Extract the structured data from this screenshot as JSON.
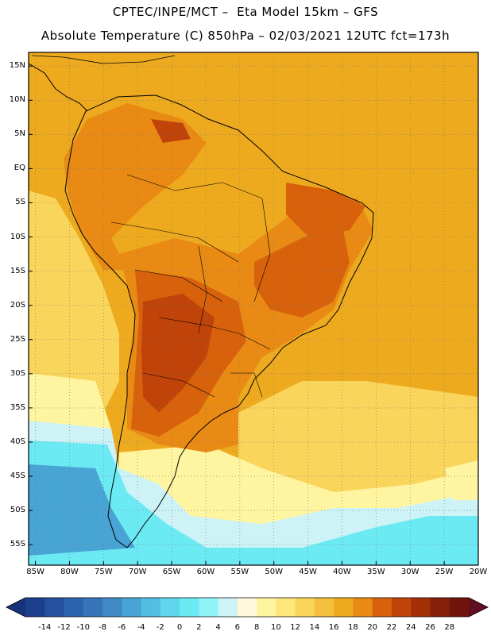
{
  "header": {
    "line1": "CPTEC/INPE/MCT –  Eta Model 15km – GFS",
    "line2": "Absolute Temperature (C) 850hPa – 02/03/2021 12UTC fct=173h"
  },
  "map": {
    "lat_range": [
      -58,
      17
    ],
    "lon_range": [
      -86,
      -20
    ],
    "lat_labels": [
      "15N",
      "10N",
      "5N",
      "EQ",
      "5S",
      "10S",
      "15S",
      "20S",
      "25S",
      "30S",
      "35S",
      "40S",
      "45S",
      "50S",
      "55S"
    ],
    "lon_labels": [
      "85W",
      "80W",
      "75W",
      "70W",
      "65W",
      "60W",
      "55W",
      "50W",
      "45W",
      "40W",
      "35W",
      "30W",
      "25W",
      "20W"
    ]
  },
  "colorbar": {
    "labels": [
      "-14",
      "-12",
      "-10",
      "-8",
      "-6",
      "-4",
      "-2",
      "0",
      "2",
      "4",
      "6",
      "8",
      "10",
      "12",
      "14",
      "16",
      "18",
      "20",
      "22",
      "24",
      "26",
      "28"
    ],
    "colors": [
      "#1c3f8c",
      "#25519e",
      "#2e63ad",
      "#3875b8",
      "#3f8ac4",
      "#48a4d4",
      "#52bee2",
      "#5fd6ec",
      "#6ceaf4",
      "#8ff3f8",
      "#cdf3f6",
      "#fff8dc",
      "#fff4a0",
      "#fde67a",
      "#f9d55c",
      "#f3bf3c",
      "#eeaa1e",
      "#e88a14",
      "#d8620c",
      "#c0440a",
      "#a43008",
      "#84200a",
      "#70130a"
    ],
    "left_arrow_color": "#15327a",
    "right_arrow_color": "#600e22"
  },
  "field_colors": {
    "cold_deep": "#48a4d4",
    "cold": "#6ceaf4",
    "cool": "#cdf3f6",
    "mild": "#fff4a0",
    "warm_light": "#f9d55c",
    "warm": "#eeaa1e",
    "hot": "#e88a14",
    "hotter": "#d8620c",
    "hottest": "#c0440a"
  }
}
